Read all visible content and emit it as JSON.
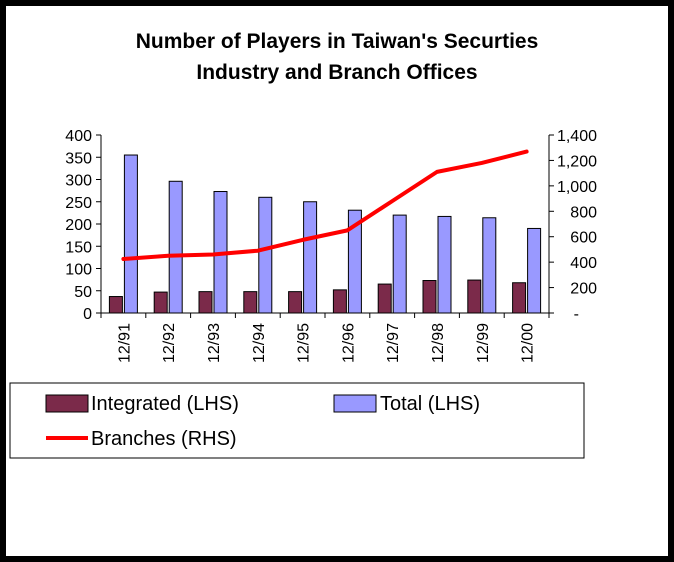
{
  "chart_data": {
    "type": "bar",
    "title": [
      "Number of Players in Taiwan's Securties",
      "Industry and Branch Offices"
    ],
    "categories": [
      "12/91",
      "12/92",
      "12/93",
      "12/94",
      "12/95",
      "12/96",
      "12/97",
      "12/98",
      "12/99",
      "12/00"
    ],
    "left_axis": {
      "ylim": [
        0,
        400
      ],
      "ticks": [
        0,
        50,
        100,
        150,
        200,
        250,
        300,
        350,
        400
      ],
      "tick_labels": [
        "0",
        "50",
        "100",
        "150",
        "200",
        "250",
        "300",
        "350",
        "400"
      ]
    },
    "right_axis": {
      "ylim": [
        0,
        1400
      ],
      "ticks": [
        0,
        200,
        400,
        600,
        800,
        1000,
        1200,
        1400
      ],
      "tick_labels": [
        "-",
        "200",
        "400",
        "600",
        "800",
        "1,000",
        "1,200",
        "1,400"
      ]
    },
    "series": [
      {
        "name": "Integrated (LHS)",
        "type": "bar",
        "axis": "left",
        "color": "#7b2a4a",
        "values": [
          37,
          47,
          48,
          48,
          48,
          52,
          65,
          73,
          74,
          68
        ]
      },
      {
        "name": "Total (LHS)",
        "type": "bar",
        "axis": "left",
        "color": "#9999ff",
        "values": [
          355,
          296,
          273,
          260,
          250,
          231,
          220,
          217,
          214,
          190
        ]
      },
      {
        "name": "Branches (RHS)",
        "type": "line",
        "axis": "right",
        "color": "#ff0000",
        "values": [
          425,
          450,
          460,
          490,
          575,
          650,
          880,
          1110,
          1180,
          1270
        ]
      }
    ],
    "legend": {
      "position": "bottom",
      "items": [
        "Integrated (LHS)",
        "Total (LHS)",
        "Branches (RHS)"
      ]
    },
    "grid": false
  }
}
